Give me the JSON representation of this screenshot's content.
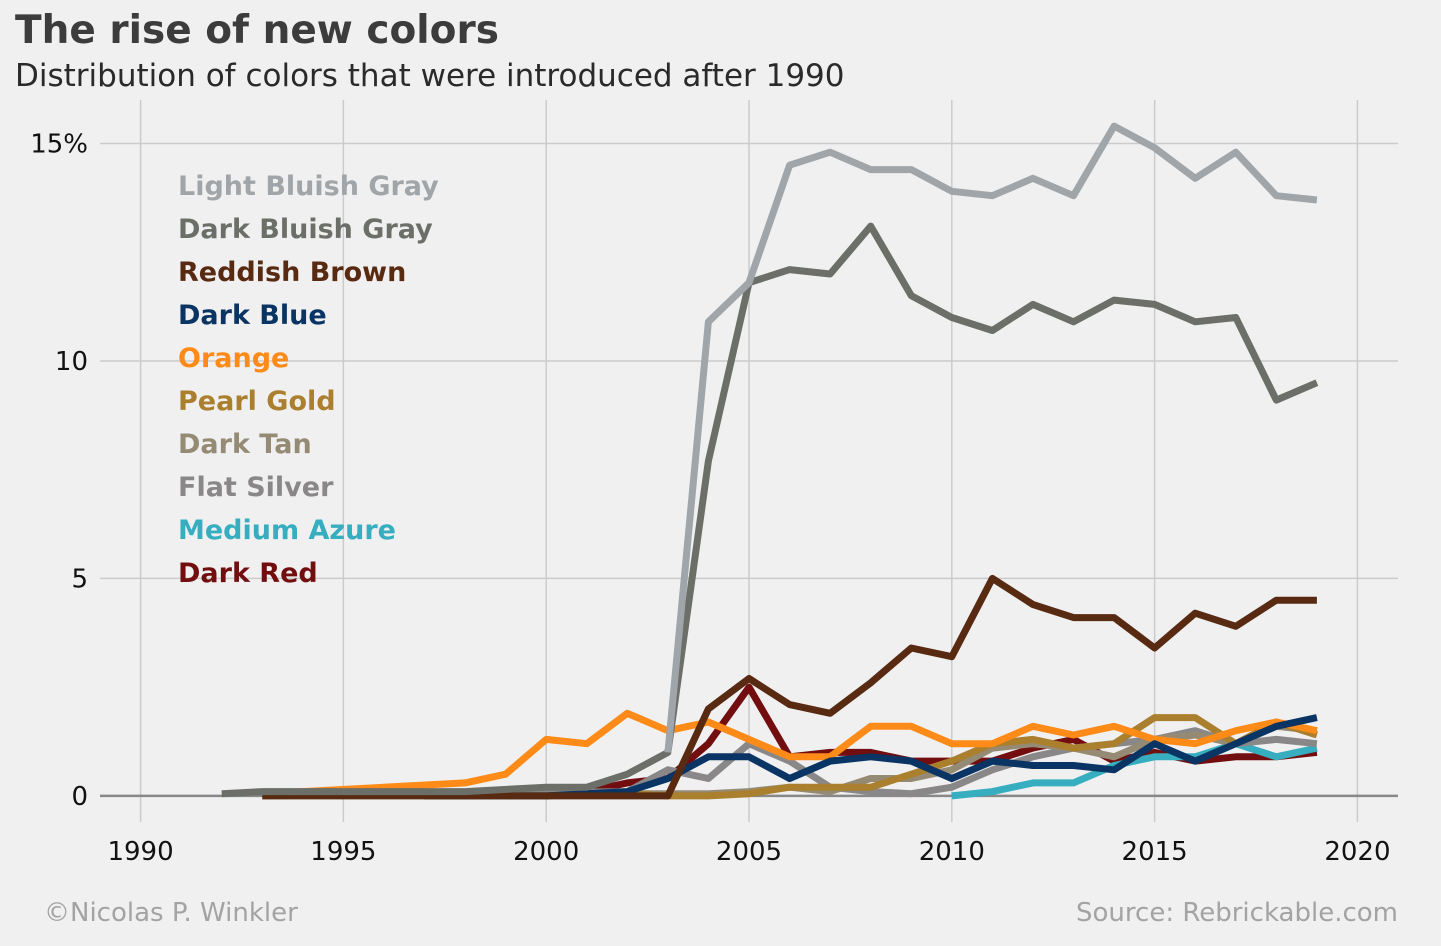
{
  "header": {
    "title": "The rise of new colors",
    "subtitle": "Distribution of colors that were introduced after 1990"
  },
  "footer": {
    "credit": "©Nicolas P. Winkler",
    "source": "Source: Rebrickable.com"
  },
  "chart_data": {
    "type": "line",
    "title": "The rise of new colors",
    "subtitle": "Distribution of colors that were introduced after 1990",
    "xlabel": "",
    "ylabel": "",
    "xlim": [
      1989,
      2021
    ],
    "ylim": [
      -0.6,
      16.0
    ],
    "x_ticks": [
      1990,
      1995,
      2000,
      2005,
      2010,
      2015,
      2020
    ],
    "x_tick_labels": [
      "1990",
      "1995",
      "2000",
      "2005",
      "2010",
      "2015",
      "2020"
    ],
    "y_ticks": [
      0,
      5,
      10,
      15
    ],
    "y_tick_labels": [
      "0",
      "5",
      "10",
      "15%"
    ],
    "grid": true,
    "legend_placement": "top-left (text labels in series colors)",
    "series": [
      {
        "name": "Light Bluish Gray",
        "color": "#a0a5a9",
        "x": [
          2003,
          2004,
          2005,
          2006,
          2007,
          2008,
          2009,
          2010,
          2011,
          2012,
          2013,
          2014,
          2015,
          2016,
          2017,
          2018,
          2019
        ],
        "values": [
          1.0,
          10.9,
          11.8,
          14.5,
          14.8,
          14.4,
          14.4,
          13.9,
          13.8,
          14.2,
          13.8,
          15.4,
          14.9,
          14.2,
          14.8,
          13.8,
          13.7
        ]
      },
      {
        "name": "Dark Bluish Gray",
        "color": "#6c6e68",
        "x": [
          1992,
          1993,
          1998,
          2000,
          2001,
          2002,
          2003,
          2004,
          2005,
          2006,
          2007,
          2008,
          2009,
          2010,
          2011,
          2012,
          2013,
          2014,
          2015,
          2016,
          2017,
          2018,
          2019
        ],
        "values": [
          0.05,
          0.1,
          0.1,
          0.2,
          0.2,
          0.5,
          1.0,
          7.7,
          11.8,
          12.1,
          12.0,
          13.1,
          11.5,
          11.0,
          10.7,
          11.3,
          10.9,
          11.4,
          11.3,
          10.9,
          11.0,
          9.1,
          9.5
        ]
      },
      {
        "name": "Reddish Brown",
        "color": "#582a12",
        "x": [
          1993,
          1994,
          2002,
          2003,
          2004,
          2005,
          2006,
          2007,
          2008,
          2009,
          2010,
          2011,
          2012,
          2013,
          2014,
          2015,
          2016,
          2017,
          2018,
          2019
        ],
        "values": [
          0.0,
          0.0,
          0.0,
          0.0,
          2.0,
          2.7,
          2.1,
          1.9,
          2.6,
          3.4,
          3.2,
          5.0,
          4.4,
          4.1,
          4.1,
          3.4,
          4.2,
          3.9,
          4.5,
          4.5
        ]
      },
      {
        "name": "Dark Blue",
        "color": "#0a3463",
        "x": [
          1997,
          1998,
          2000,
          2002,
          2003,
          2004,
          2005,
          2006,
          2007,
          2008,
          2009,
          2010,
          2011,
          2012,
          2013,
          2014,
          2015,
          2016,
          2017,
          2018,
          2019
        ],
        "values": [
          0.0,
          0.0,
          0.0,
          0.1,
          0.4,
          0.9,
          0.9,
          0.4,
          0.8,
          0.9,
          0.8,
          0.4,
          0.8,
          0.7,
          0.7,
          0.6,
          1.2,
          0.8,
          1.2,
          1.6,
          1.8
        ]
      },
      {
        "name": "Orange",
        "color": "#fe8a18",
        "x": [
          1993,
          1998,
          1999,
          2000,
          2001,
          2002,
          2003,
          2004,
          2005,
          2006,
          2007,
          2008,
          2009,
          2010,
          2011,
          2012,
          2013,
          2014,
          2015,
          2016,
          2017,
          2018,
          2019
        ],
        "values": [
          0.05,
          0.3,
          0.5,
          1.3,
          1.2,
          1.9,
          1.5,
          1.7,
          1.3,
          0.9,
          0.9,
          1.6,
          1.6,
          1.2,
          1.2,
          1.6,
          1.4,
          1.6,
          1.3,
          1.2,
          1.5,
          1.7,
          1.5
        ]
      },
      {
        "name": "Pearl Gold",
        "color": "#aa7f2e",
        "x": [
          2002,
          2003,
          2004,
          2005,
          2006,
          2007,
          2008,
          2009,
          2010,
          2011,
          2012,
          2013,
          2014,
          2015,
          2016,
          2017,
          2018,
          2019
        ],
        "values": [
          0.05,
          0.0,
          0.0,
          0.05,
          0.2,
          0.2,
          0.2,
          0.5,
          0.8,
          1.2,
          1.3,
          1.1,
          1.2,
          1.8,
          1.8,
          1.2,
          1.7,
          1.4
        ]
      },
      {
        "name": "Dark Tan",
        "color": "#958a73",
        "x": [
          2002,
          2004,
          2005,
          2006,
          2007,
          2008,
          2009,
          2010,
          2011,
          2012,
          2013,
          2014,
          2015,
          2016,
          2017,
          2018,
          2019
        ],
        "values": [
          0.05,
          0.05,
          0.1,
          0.2,
          0.1,
          0.4,
          0.4,
          0.6,
          1.1,
          1.2,
          1.1,
          0.9,
          1.3,
          1.4,
          1.2,
          1.6,
          1.5
        ]
      },
      {
        "name": "Flat Silver",
        "color": "#898788",
        "x": [
          1993,
          2002,
          2003,
          2004,
          2005,
          2006,
          2007,
          2008,
          2009,
          2010,
          2011,
          2012,
          2013,
          2014,
          2015,
          2016,
          2017,
          2018,
          2019
        ],
        "values": [
          0.0,
          0.1,
          0.6,
          0.4,
          1.2,
          0.8,
          0.2,
          0.1,
          0.05,
          0.2,
          0.6,
          0.9,
          1.1,
          1.2,
          1.3,
          1.5,
          1.2,
          1.3,
          1.2
        ]
      },
      {
        "name": "Medium Azure",
        "color": "#36aebf",
        "x": [
          2010,
          2011,
          2012,
          2013,
          2014,
          2015,
          2016,
          2017,
          2018,
          2019
        ],
        "values": [
          0.0,
          0.1,
          0.3,
          0.3,
          0.7,
          0.9,
          0.9,
          1.2,
          0.9,
          1.1
        ]
      },
      {
        "name": "Dark Red",
        "color": "#720e0f",
        "x": [
          2000,
          2001,
          2002,
          2003,
          2004,
          2005,
          2006,
          2007,
          2008,
          2009,
          2010,
          2011,
          2012,
          2013,
          2014,
          2015,
          2016,
          2017,
          2018,
          2019
        ],
        "values": [
          0.0,
          0.1,
          0.3,
          0.4,
          1.2,
          2.5,
          0.9,
          1.0,
          1.0,
          0.8,
          0.8,
          0.8,
          1.1,
          1.3,
          0.8,
          1.0,
          0.8,
          0.9,
          0.9,
          1.0
        ]
      }
    ]
  }
}
